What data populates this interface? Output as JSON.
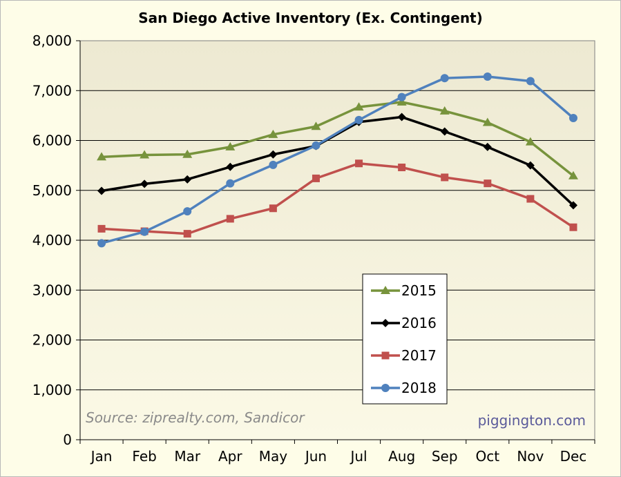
{
  "chart_data": {
    "type": "line",
    "title": "San Diego Active Inventory (Ex. Contingent)",
    "xlabel": "",
    "ylabel": "",
    "categories": [
      "Jan",
      "Feb",
      "Mar",
      "Apr",
      "May",
      "Jun",
      "Jul",
      "Aug",
      "Sep",
      "Oct",
      "Nov",
      "Dec"
    ],
    "ylim": [
      0,
      8000
    ],
    "yticks": [
      0,
      1000,
      2000,
      3000,
      4000,
      5000,
      6000,
      7000,
      8000
    ],
    "ytick_labels": [
      "0",
      "1,000",
      "2,000",
      "3,000",
      "4,000",
      "5,000",
      "6,000",
      "7,000",
      "8,000"
    ],
    "grid": true,
    "legend_position": "center-right",
    "series": [
      {
        "name": "2015",
        "color": "#77933c",
        "marker": "triangle",
        "values": [
          5670,
          5710,
          5720,
          5870,
          6120,
          6280,
          6670,
          6770,
          6590,
          6360,
          5970,
          5290
        ]
      },
      {
        "name": "2016",
        "color": "#000000",
        "marker": "diamond",
        "values": [
          4990,
          5130,
          5220,
          5470,
          5720,
          5890,
          6370,
          6470,
          6180,
          5870,
          5500,
          4700
        ]
      },
      {
        "name": "2017",
        "color": "#c0504d",
        "marker": "square",
        "values": [
          4230,
          4180,
          4130,
          4430,
          4640,
          5240,
          5540,
          5460,
          5260,
          5140,
          4830,
          4260
        ]
      },
      {
        "name": "2018",
        "color": "#4f81bd",
        "marker": "circle",
        "values": [
          3940,
          4170,
          4580,
          5140,
          5510,
          5900,
          6410,
          6870,
          7250,
          7280,
          7190,
          6450
        ]
      }
    ],
    "annotations": {
      "source": "Source: ziprealty.com, Sandicor",
      "credit": "piggington.com"
    },
    "colors": {
      "plot_bg_top": "#ede9d2",
      "plot_bg_bottom": "#fbf9e6",
      "page_bg": "#fefde8"
    }
  }
}
